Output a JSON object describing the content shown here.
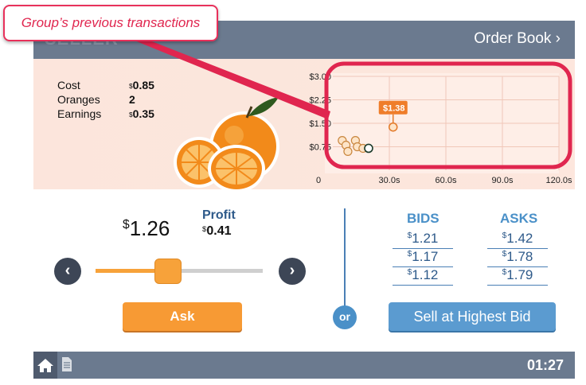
{
  "header": {
    "role_title": "SELLER",
    "order_book_label": "Order Book ›"
  },
  "callout": {
    "text": "Group’s previous transactions"
  },
  "stats": {
    "cost_label": "Cost",
    "cost_value": "0.85",
    "oranges_label": "Oranges",
    "oranges_value": "2",
    "earnings_label": "Earnings",
    "earnings_value": "0.35",
    "currency": "$"
  },
  "chart_data": {
    "type": "scatter",
    "title": "",
    "xlabel": "",
    "ylabel": "",
    "x_ticks": [
      "0",
      "30.0s",
      "60.0s",
      "90.0s",
      "120.0s"
    ],
    "y_ticks": [
      "$0.75",
      "$1.50",
      "$2.25",
      "$3.00"
    ],
    "xlim": [
      0,
      120
    ],
    "ylim": [
      0,
      3.0
    ],
    "series": [
      {
        "x": [
          5,
          7,
          8,
          12,
          13,
          16,
          32
        ],
        "y": [
          0.95,
          0.8,
          0.6,
          0.95,
          0.75,
          0.7,
          1.38
        ]
      }
    ],
    "highlight": {
      "x": 32,
      "y": 1.38,
      "label_currency": "$",
      "label_value": "1.38"
    },
    "current_point": {
      "x": 19,
      "y": 0.7
    }
  },
  "offer": {
    "currency": "$",
    "price": "1.26",
    "profit_label": "Profit",
    "profit_value": "0.41",
    "prev_icon": "‹",
    "next_icon": "›",
    "slider_fraction": 0.43,
    "ask_label": "Ask"
  },
  "book": {
    "bids_label": "BIDS",
    "asks_label": "ASKS",
    "bids": [
      "1.21",
      "1.17",
      "1.12"
    ],
    "asks": [
      "1.42",
      "1.78",
      "1.79"
    ],
    "or_label": "or",
    "sell_label": "Sell at Highest Bid"
  },
  "footer": {
    "timer": "01:27"
  }
}
